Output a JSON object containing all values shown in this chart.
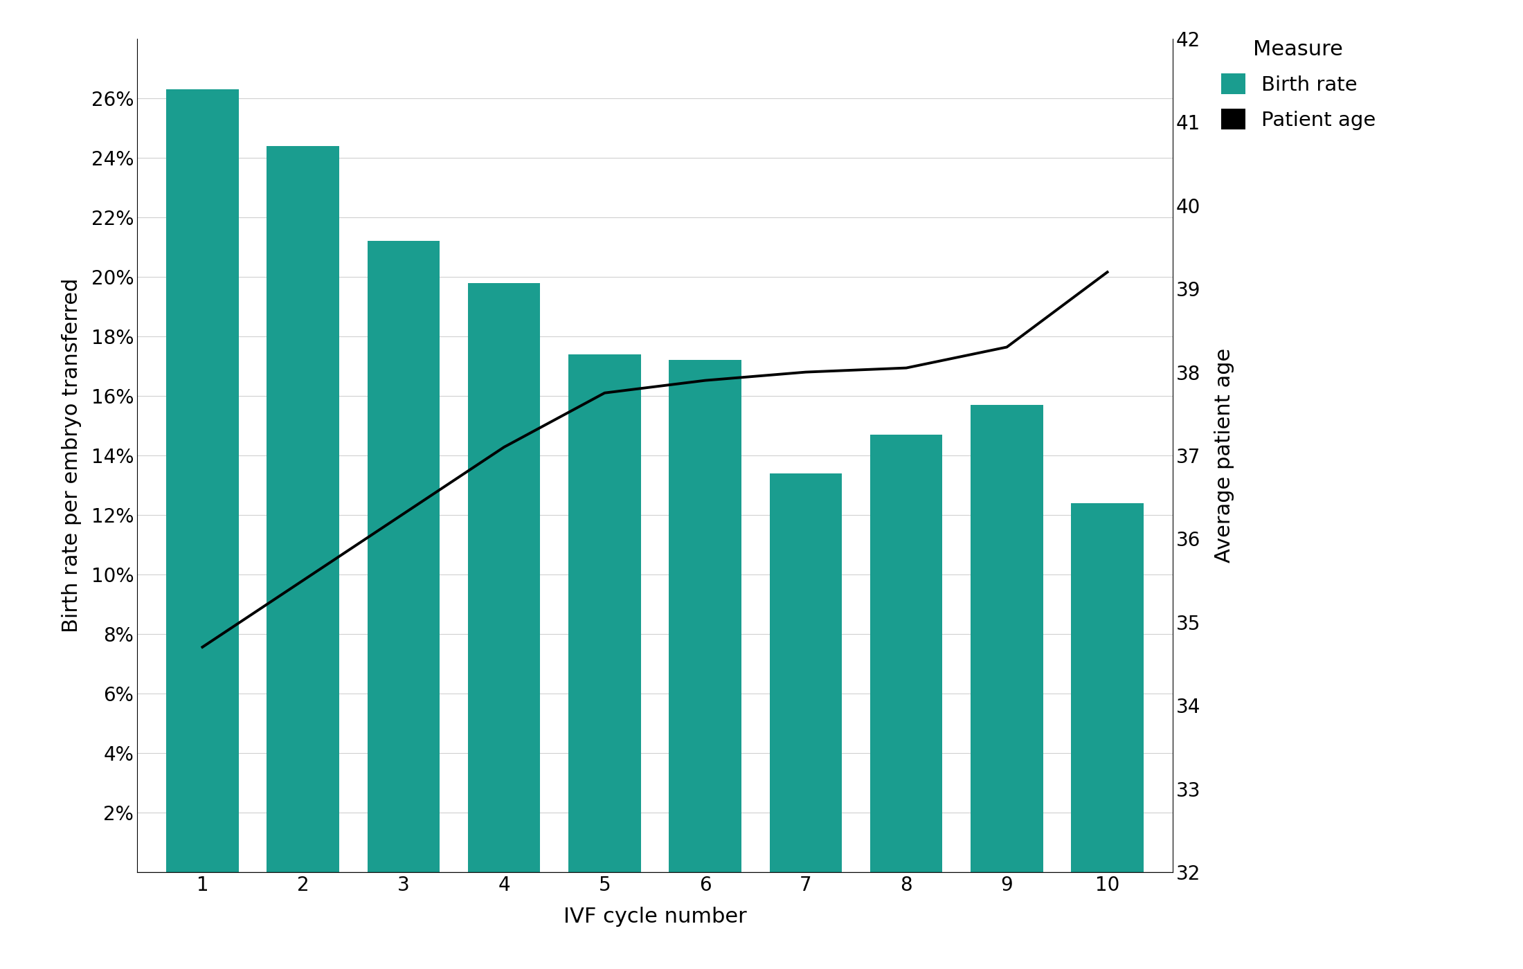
{
  "cycles": [
    1,
    2,
    3,
    4,
    5,
    6,
    7,
    8,
    9,
    10
  ],
  "birth_rates": [
    0.263,
    0.244,
    0.212,
    0.198,
    0.174,
    0.172,
    0.134,
    0.147,
    0.157,
    0.124
  ],
  "patient_ages": [
    34.7,
    35.5,
    36.3,
    37.1,
    37.75,
    37.9,
    38.0,
    38.05,
    38.3,
    39.2
  ],
  "bar_color": "#1a9d8f",
  "line_color": "#000000",
  "ylabel_left": "Birth rate per embryo transferred",
  "ylabel_right": "Average patient age",
  "xlabel": "IVF cycle number",
  "ylim_left": [
    0,
    0.28
  ],
  "ylim_right": [
    32,
    42
  ],
  "yticks_left": [
    0.02,
    0.04,
    0.06,
    0.08,
    0.1,
    0.12,
    0.14,
    0.16,
    0.18,
    0.2,
    0.22,
    0.24,
    0.26
  ],
  "yticks_right": [
    32,
    33,
    34,
    35,
    36,
    37,
    38,
    39,
    40,
    41,
    42
  ],
  "legend_title": "Measure",
  "legend_labels": [
    "Birth rate",
    "Patient age"
  ],
  "legend_colors": [
    "#1a9d8f",
    "#000000"
  ],
  "background_color": "#ffffff",
  "grid_color": "#d0d0d0",
  "label_fontsize": 22,
  "tick_fontsize": 20,
  "legend_fontsize": 21,
  "legend_title_fontsize": 22
}
